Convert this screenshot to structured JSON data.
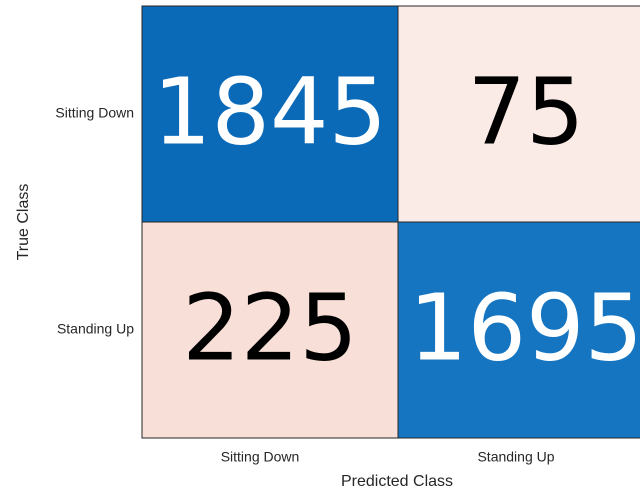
{
  "chart_data": {
    "type": "heatmap",
    "x_categories": [
      "Sitting Down",
      "Standing Up"
    ],
    "y_categories": [
      "Sitting Down",
      "Standing Up"
    ],
    "values": [
      [
        1845,
        75
      ],
      [
        225,
        1695
      ]
    ],
    "colors": [
      [
        "#0a6ab8",
        "#fbebe7"
      ],
      [
        "#f8e0d8",
        "#1575c0"
      ]
    ],
    "text_colors": [
      [
        "#ffffff",
        "#000000"
      ],
      [
        "#000000",
        "#ffffff"
      ]
    ],
    "xlabel": "Predicted Class",
    "ylabel": "True Class"
  }
}
